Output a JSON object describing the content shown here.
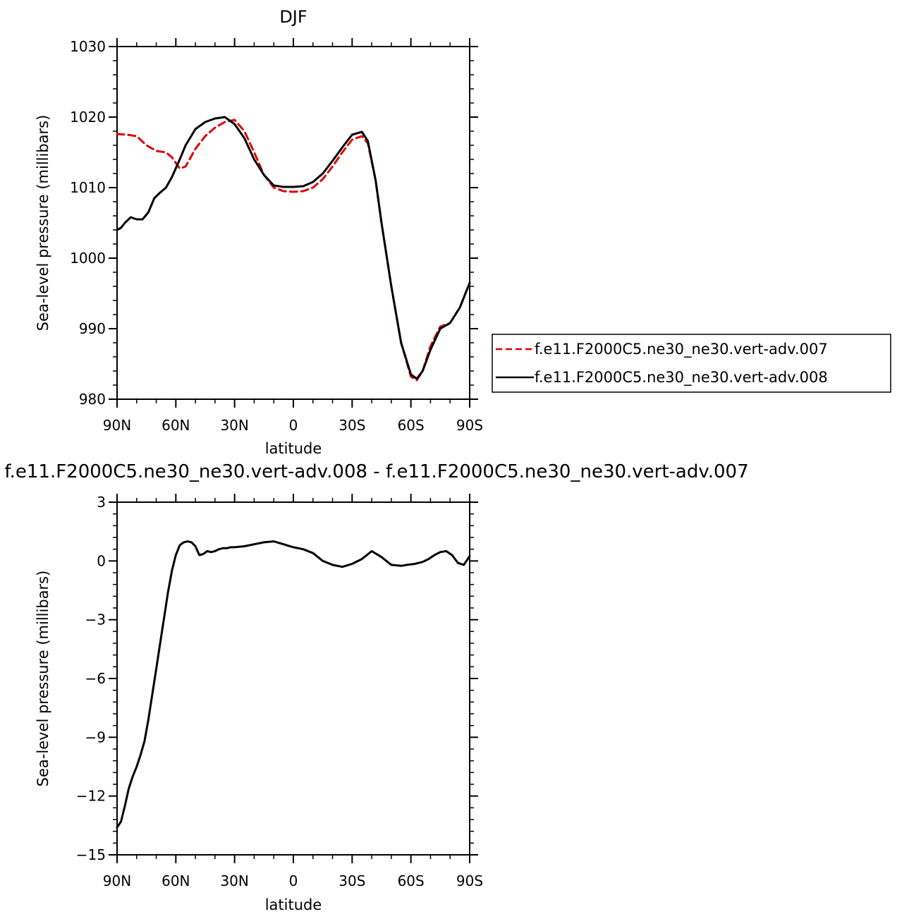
{
  "chart_data": [
    {
      "type": "line",
      "title": "DJF",
      "xlabel": "latitude",
      "ylabel": "Sea-level pressure (millibars)",
      "xlim": [
        90,
        -90
      ],
      "ylim": [
        980,
        1030
      ],
      "xticks": [
        {
          "value": 90,
          "label": "90N"
        },
        {
          "value": 60,
          "label": "60N"
        },
        {
          "value": 30,
          "label": "30N"
        },
        {
          "value": 0,
          "label": "0"
        },
        {
          "value": -30,
          "label": "30S"
        },
        {
          "value": -60,
          "label": "60S"
        },
        {
          "value": -90,
          "label": "90S"
        }
      ],
      "yticks": [
        {
          "value": 980,
          "label": "980"
        },
        {
          "value": 990,
          "label": "990"
        },
        {
          "value": 1000,
          "label": "1000"
        },
        {
          "value": 1010,
          "label": "1010"
        },
        {
          "value": 1020,
          "label": "1020"
        },
        {
          "value": 1030,
          "label": "1030"
        }
      ],
      "legend_position": "right",
      "series": [
        {
          "name": "f.e11.F2000C5.ne30_ne30.vert-adv.007",
          "color": "#e00000",
          "dash": "dashed",
          "x": [
            90,
            85,
            80,
            75,
            70,
            65,
            62,
            58,
            55,
            50,
            45,
            40,
            35,
            30,
            25,
            20,
            15,
            10,
            5,
            0,
            -5,
            -10,
            -15,
            -20,
            -25,
            -30,
            -35,
            -38,
            -42,
            -45,
            -50,
            -55,
            -60,
            -63,
            -66,
            -70,
            -75,
            -80,
            -85,
            -90
          ],
          "y": [
            1017.6,
            1017.5,
            1017.3,
            1016.0,
            1015.2,
            1015.0,
            1014.3,
            1012.7,
            1013.0,
            1015.5,
            1017.3,
            1018.5,
            1019.3,
            1019.6,
            1018.0,
            1015.0,
            1011.8,
            1010.0,
            1009.5,
            1009.4,
            1009.5,
            1010.0,
            1011.2,
            1013.0,
            1015.0,
            1016.8,
            1017.3,
            1016.3,
            1011.0,
            1005.0,
            996.0,
            988.0,
            983.2,
            982.7,
            984.0,
            987.5,
            990.3,
            990.8,
            993.0,
            996.5
          ]
        },
        {
          "name": "f.e11.F2000C5.ne30_ne30.vert-adv.008",
          "color": "#000000",
          "dash": "solid",
          "x": [
            90,
            88,
            86,
            83,
            80,
            77,
            74,
            71,
            68,
            65,
            62,
            58,
            55,
            50,
            45,
            40,
            35,
            30,
            25,
            20,
            15,
            10,
            5,
            0,
            -5,
            -10,
            -15,
            -20,
            -25,
            -30,
            -35,
            -38,
            -42,
            -45,
            -50,
            -55,
            -60,
            -63,
            -66,
            -70,
            -75,
            -80,
            -85,
            -90
          ],
          "y": [
            1004.0,
            1004.3,
            1005.0,
            1005.8,
            1005.5,
            1005.5,
            1006.5,
            1008.5,
            1009.3,
            1010.0,
            1011.5,
            1014.0,
            1016.0,
            1018.3,
            1019.3,
            1019.8,
            1020.0,
            1019.0,
            1017.0,
            1014.0,
            1011.8,
            1010.3,
            1010.1,
            1010.1,
            1010.2,
            1010.8,
            1012.0,
            1013.8,
            1015.7,
            1017.5,
            1017.9,
            1016.6,
            1011.0,
            1005.0,
            996.0,
            988.0,
            983.5,
            982.9,
            984.0,
            987.0,
            990.0,
            990.8,
            993.0,
            996.5
          ]
        }
      ]
    },
    {
      "type": "line",
      "title": "f.e11.F2000C5.ne30_ne30.vert-adv.008 - f.e11.F2000C5.ne30_ne30.vert-adv.007",
      "xlabel": "latitude",
      "ylabel": "Sea-level pressure (millibars)",
      "xlim": [
        90,
        -90
      ],
      "ylim": [
        -15,
        3
      ],
      "xticks": [
        {
          "value": 90,
          "label": "90N"
        },
        {
          "value": 60,
          "label": "60N"
        },
        {
          "value": 30,
          "label": "30N"
        },
        {
          "value": 0,
          "label": "0"
        },
        {
          "value": -30,
          "label": "30S"
        },
        {
          "value": -60,
          "label": "60S"
        },
        {
          "value": -90,
          "label": "90S"
        }
      ],
      "yticks": [
        {
          "value": -15,
          "label": "−15"
        },
        {
          "value": -12,
          "label": "−12"
        },
        {
          "value": -9,
          "label": "−9"
        },
        {
          "value": -6,
          "label": "−6"
        },
        {
          "value": -3,
          "label": "−3"
        },
        {
          "value": 0,
          "label": "0"
        },
        {
          "value": 3,
          "label": "3"
        }
      ],
      "series": [
        {
          "color": "#000000",
          "dash": "solid",
          "x": [
            90,
            88,
            86,
            84,
            82,
            80,
            78,
            76,
            74,
            72,
            70,
            68,
            66,
            64,
            62,
            60,
            58,
            56,
            54,
            52,
            50,
            48,
            46,
            44,
            42,
            40,
            38,
            36,
            34,
            32,
            30,
            25,
            20,
            15,
            10,
            5,
            0,
            -5,
            -10,
            -15,
            -20,
            -25,
            -30,
            -35,
            -40,
            -45,
            -50,
            -55,
            -58,
            -62,
            -66,
            -69,
            -72,
            -75,
            -78,
            -81,
            -84,
            -87,
            -90
          ],
          "y": [
            -13.6,
            -13.3,
            -12.5,
            -11.6,
            -11.0,
            -10.5,
            -9.9,
            -9.2,
            -8.1,
            -6.8,
            -5.5,
            -4.2,
            -2.9,
            -1.6,
            -0.5,
            0.3,
            0.8,
            0.95,
            1.0,
            0.95,
            0.75,
            0.3,
            0.35,
            0.5,
            0.45,
            0.5,
            0.6,
            0.65,
            0.65,
            0.7,
            0.7,
            0.75,
            0.85,
            0.95,
            1.0,
            0.85,
            0.7,
            0.6,
            0.4,
            0.0,
            -0.2,
            -0.3,
            -0.15,
            0.1,
            0.5,
            0.2,
            -0.2,
            -0.25,
            -0.2,
            -0.15,
            -0.05,
            0.1,
            0.3,
            0.45,
            0.5,
            0.3,
            -0.1,
            -0.2,
            0.25
          ]
        }
      ]
    }
  ]
}
